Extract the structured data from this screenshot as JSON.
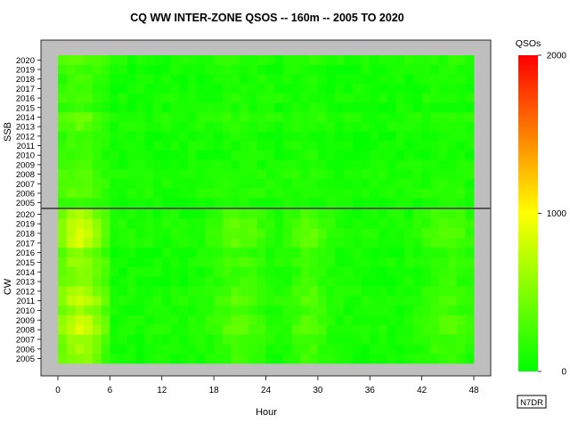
{
  "chart_data": {
    "type": "heatmap",
    "title": "CQ WW INTER-ZONE QSOS -- 160m -- 2005 TO 2020",
    "xlabel": "Hour",
    "x_ticks": [
      "0",
      "6",
      "12",
      "18",
      "24",
      "30",
      "36",
      "42",
      "48"
    ],
    "x_range": [
      0,
      48
    ],
    "panels": [
      {
        "name": "SSB",
        "years": [
          "2020",
          "2019",
          "2018",
          "2017",
          "2016",
          "2015",
          "2014",
          "2013",
          "2012",
          "2011",
          "2010",
          "2009",
          "2008",
          "2007",
          "2006",
          "2005"
        ]
      },
      {
        "name": "CW",
        "years": [
          "2020",
          "2019",
          "2018",
          "2017",
          "2016",
          "2015",
          "2014",
          "2013",
          "2012",
          "2011",
          "2010",
          "2009",
          "2008",
          "2007",
          "2006",
          "2005"
        ]
      }
    ],
    "colorbar": {
      "label": "QSOs",
      "range": [
        0,
        2000
      ],
      "ticks": [
        "0",
        "1000",
        "2000"
      ],
      "colors": [
        "#00ff00",
        "#ffff00",
        "#ff0000"
      ]
    },
    "frame_color": "#bebebe",
    "divider_color": "#555555"
  },
  "watermark": "N7DR"
}
